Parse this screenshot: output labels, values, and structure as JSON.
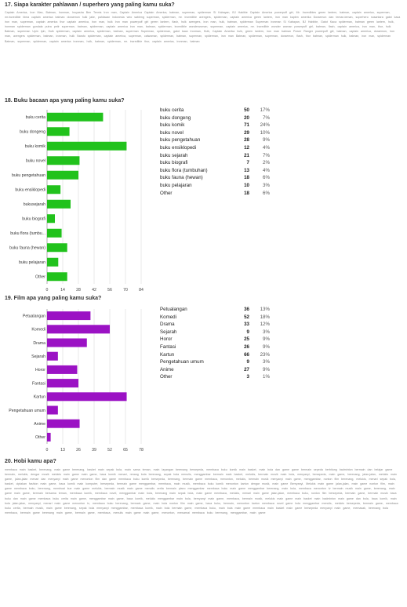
{
  "q17": {
    "title": "17. Siapa karakter pahlawan / superhero yang paling kamu suka?",
    "answers": "Captain America, Iron Man, Batman, Ironman, Inuyasha Ben Tennis Iron man, Captain America Captain America, batman, superman, spiderman Si Kabayan, BJ Habibie Captain America powerpuff girl, Mr. Incredibles green lantern, batman, captain america, superman, mr.incredible bima captain america batman doraemon hulk jake, pahlawan indonesia wiro sableng superman, spiderman, mr. incredible avengers, spiderman, captain america green lantern, iron man kapten amerika Doraemon dan teman-teman, superhero nusantara gatot kaca iron man, superman, captain america thor captain america, Iron man, hulk Iron man powerpuff girl green lantern, flash, hulk avengers, iron man, hulk, batman, spiderman Superman ironman Si Kabayan, BJ Habibie, Gatot Kaca spiderman, batman green lantern, hulk, ironman spiderman gundala putra petir superman, batman, spiderman, captain america iron man, batman, spiderman, incredible wonderwoman, superman, captain america, mr. incredible wonder woman powerpuff girl, batman, flash, captain america, iron man, thor, hulk Batman, superman Upin Ipin, Hulk spiderman, captain america, spiderman, batman, superman Superman, spiderman, gatot kaca Ironman, Hulk, Captain Amerika hulk, green lantern, iron man batman Power Ranger powerpuff girl, batman, captain america, doraemon, iron man, avengers spiderman, batman, ironman, hulk Naruto spiderman, captain america, superman, catwoman, spiderman, batman, superman, spiderman, iron man Batman, spiderman, superman, doraemon, flash, thor batman, spiderman hulk, batman, iron man, spiderman Batman, superman, spiderman, captain america ironman, hulk, batman, spiderman, mr. incredible thor, captain america, ironman, batman",
    "answers_line_count": 9
  },
  "q18": {
    "title": "18. Buku bacaan apa yang paling kamu suka?",
    "legend": [
      {
        "label": "buku cerita",
        "count": "50",
        "pct": "17%"
      },
      {
        "label": "buku dongeng",
        "count": "20",
        "pct": "7%"
      },
      {
        "label": "buku komik",
        "count": "71",
        "pct": "24%"
      },
      {
        "label": "buku novel",
        "count": "29",
        "pct": "10%"
      },
      {
        "label": "buku pengetahuan",
        "count": "28",
        "pct": "9%"
      },
      {
        "label": "buku ensiklopedi",
        "count": "12",
        "pct": "4%"
      },
      {
        "label": "buku sejarah",
        "count": "21",
        "pct": "7%"
      },
      {
        "label": "buku biografi",
        "count": "7",
        "pct": "2%"
      },
      {
        "label": "buku flora (tumbuhan)",
        "count": "13",
        "pct": "4%"
      },
      {
        "label": "buku fauna (hewan)",
        "count": "18",
        "pct": "6%"
      },
      {
        "label": "buku pelajaran",
        "count": "10",
        "pct": "3%"
      },
      {
        "label": "Other",
        "count": "18",
        "pct": "6%"
      }
    ]
  },
  "q19": {
    "title": "19. Film apa yang paling kamu suka?",
    "legend": [
      {
        "label": "Petualangan",
        "count": "36",
        "pct": "13%"
      },
      {
        "label": "Komedi",
        "count": "52",
        "pct": "18%"
      },
      {
        "label": "Drama",
        "count": "33",
        "pct": "12%"
      },
      {
        "label": "Sejarah",
        "count": "9",
        "pct": "3%"
      },
      {
        "label": "Horor",
        "count": "25",
        "pct": "9%"
      },
      {
        "label": "Fantasi",
        "count": "26",
        "pct": "9%"
      },
      {
        "label": "Kartun",
        "count": "66",
        "pct": "23%"
      },
      {
        "label": "Pengetahuan umum",
        "count": "9",
        "pct": "3%"
      },
      {
        "label": "Anime",
        "count": "27",
        "pct": "9%"
      },
      {
        "label": "Other",
        "count": "3",
        "pct": "1%"
      }
    ]
  },
  "q20": {
    "title": "20. Hobi kamu apa?",
    "answers": "membaca main basket, berenang, main game berenang, basket main sepak bola, main sama teman, main layangan berenang bersepeda, membaca buku komik main basket, main bola dan game game bermain sepeda berhitung badminton bermain dan belajar game bermain, melukis, dengar musik melukis main game main game, baca komik menari, renang bola berenang, sepak bola menulis, menggambar bermain main basket, melukis, bermain musik main bola, menyanyi, bersepeda, main game, berenang, jalan-jalan, melukis main game, jalan-jalan menari dan menyanyi main game menonton film dan game membaca buku komik bersepeda, berenang, bermain game membaca, menonton, melukis, bermain musik menyanyi main game, menggambar, nonton film berenang, melukis, menari sepak bola, basket, ciptakan fashion main game, baca komik main komputer, bersepeda, bermain game menggambar, membaca, main musik, membaca buku komik menonton kartun dengar musik, main game Bernyanyi, Melukis main game jalan-jalan, main game nonton film, main game membaca buku, berenang, membuat kue main game melukis, bermain musik main game menulis cerita bermain piano menggambar membaca buku main game menggambar berenang, main bola, membaca menonton tv bermain musik main game, berenang, main game main game, bermain bersama teman, membaca komik, membaca novel, menggambar main bola, berenang main sepak bola, main game membaca, melukis, menari main game jalan-jalan, membaca buku, nonton film bersepeda, bermain game, bermain musik baca buku dan main game membaca buku cerita main game, menggambar main game, baca komik, melukis menggambar main bola, bernyanyi main game, membaca, bermain musik, melukis main game main basket main badminton main game dan bola, baca komik, main bola jalan-jalan, menyanyi, menari main game menonton tv, membaca buku berenang, bermain game, main bola nonton film main game, baca buku, bermain, menonton kartun membaca novel game bola menggambar menulis, melukis bersepeda, bermain game, membaca buku cerita, bermain musik, main game berenang, sepak bola menyanyi menggambar, membaca komik, main bola bermain game, membaca buku, main bola main game membaca main basket main game bersepeda menyanyi main game, memasak, berenang bola membaca, bermain game berenang main game, bermain game, membaca, menulis main game main game, menonton, mewarnai membaca buku berenang, menggambar, main game",
    "answers_line_count": 29
  },
  "chart_data": [
    {
      "type": "bar",
      "orientation": "horizontal",
      "title": "18. Buku bacaan apa yang paling kamu suka?",
      "categories": [
        "buku cerita",
        "buku dongeng",
        "buku komik",
        "buku novel",
        "buku pengetahuan",
        "buku ensiklopedi",
        "buku sejarah",
        "buku biografi",
        "buku flora (tumbuhan)",
        "buku fauna (hewan)",
        "buku pelajaran",
        "Other"
      ],
      "values": [
        50,
        20,
        71,
        29,
        28,
        12,
        21,
        7,
        13,
        18,
        10,
        18
      ],
      "axis_labels": [
        "buku cerita",
        "buku dongeng",
        "buku komik",
        "buku novel",
        "buku pengetahuan",
        "buku ensiklopedi",
        "bukusejarah",
        "buku biografi",
        "buku flora (tumbu...",
        "buku fauna (hewan)",
        "buku pelajaran",
        "Other"
      ],
      "xticks": [
        "0",
        "14",
        "28",
        "42",
        "56",
        "70",
        "84"
      ],
      "xlim": [
        0,
        84
      ],
      "color": "#21c21c",
      "grid": true
    },
    {
      "type": "bar",
      "orientation": "horizontal",
      "title": "19. Film apa yang paling kamu suka?",
      "categories": [
        "Petualangan",
        "Komedi",
        "Drama",
        "Sejarah",
        "Horor",
        "Fantasi",
        "Kartun",
        "Pengetahuan umum",
        "Anime",
        "Other"
      ],
      "values": [
        36,
        52,
        33,
        9,
        25,
        26,
        66,
        9,
        27,
        3
      ],
      "axis_labels": [
        "Petualangan",
        "Komedi",
        "Drama",
        "Sejarah",
        "Horor",
        "Fantasi",
        "Kartun",
        "Pengetahuan umum",
        "Anime",
        "Other"
      ],
      "xticks": [
        "0",
        "13",
        "26",
        "39",
        "52",
        "65",
        "78"
      ],
      "xlim": [
        0,
        78
      ],
      "color": "#9b12c4",
      "grid": true
    }
  ]
}
